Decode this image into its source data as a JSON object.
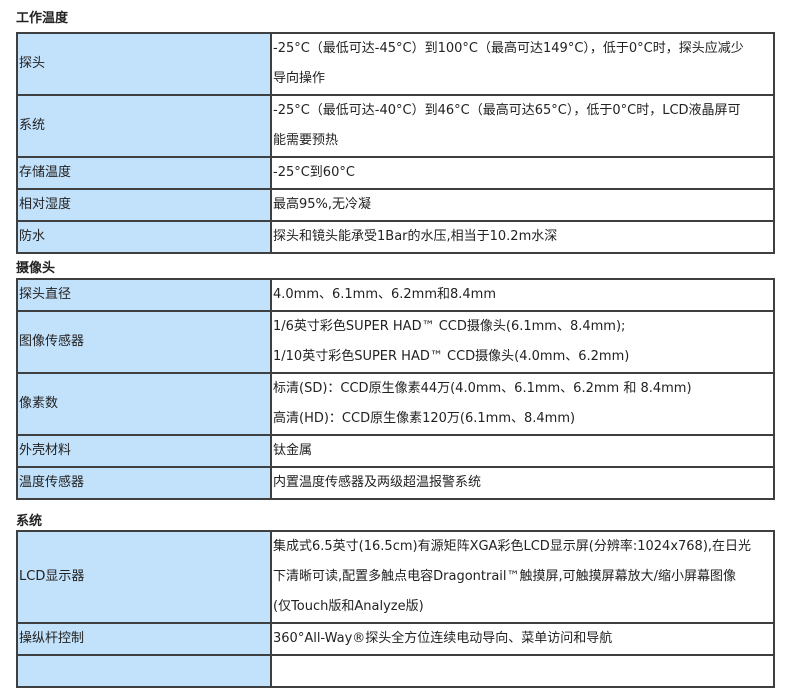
{
  "sections": [
    {
      "title": "工作温度",
      "rows": [
        {
          "label": "探头",
          "lines": [
            "-25°C（最低可达-45°C）到100°C（最高可达149°C），低于0°C时，探头应减少",
            "导向操作"
          ]
        },
        {
          "label": "系统",
          "lines": [
            "-25°C（最低可达-40°C）到46°C（最高可达65°C），低于0°C时，LCD液晶屏可",
            "能需要预热"
          ]
        },
        {
          "label": "存储温度",
          "lines": [
            "-25°C到60°C"
          ]
        },
        {
          "label": "相对湿度",
          "lines": [
            "最高95%,无冷凝"
          ]
        },
        {
          "label": "防水",
          "lines": [
            "探头和镜头能承受1Bar的水压,相当于10.2m水深"
          ]
        }
      ]
    },
    {
      "title": "摄像头",
      "rows": [
        {
          "label": "探头直径",
          "lines": [
            "4.0mm、6.1mm、6.2mm和8.4mm"
          ]
        },
        {
          "label": "图像传感器",
          "lines": [
            "1/6英寸彩色SUPER HAD™ CCD摄像头(6.1mm、8.4mm);",
            "1/10英寸彩色SUPER HAD™ CCD摄像头(4.0mm、6.2mm)"
          ]
        },
        {
          "label": "像素数",
          "lines": [
            "标清(SD)：CCD原生像素44万(4.0mm、6.1mm、6.2mm 和 8.4mm)",
            "高清(HD)：CCD原生像素120万(6.1mm、8.4mm)"
          ]
        },
        {
          "label": "外壳材料",
          "lines": [
            "钛金属"
          ]
        },
        {
          "label": "温度传感器",
          "lines": [
            "内置温度传感器及两级超温报警系统"
          ]
        }
      ]
    },
    {
      "title": "系统",
      "rows": [
        {
          "label": "LCD显示器",
          "lines": [
            "集成式6.5英寸(16.5cm)有源矩阵XGA彩色LCD显示屏(分辨率:1024x768),在日光",
            "下清晰可读,配置多触点电容Dragontrail™触摸屏,可触摸屏幕放大/缩小屏幕图像",
            "(仅Touch版和Analyze版)"
          ]
        },
        {
          "label": "操纵杆控制",
          "lines": [
            "360°All-Way®探头全方位连续电动导向、菜单访问和导航"
          ]
        },
        {
          "label": "",
          "lines": [
            ""
          ]
        }
      ]
    }
  ]
}
